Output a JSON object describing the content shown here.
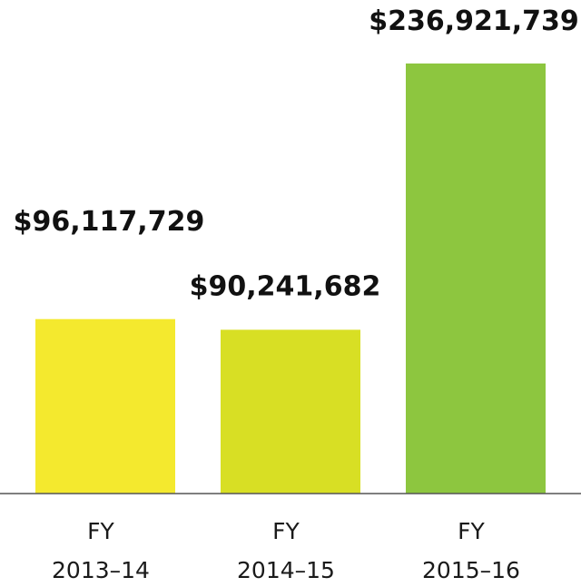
{
  "chart_data": {
    "type": "bar",
    "title": "",
    "xlabel": "",
    "ylabel": "",
    "categories": [
      {
        "line1": "FY",
        "line2": "2013–14"
      },
      {
        "line1": "FY",
        "line2": "2014–15"
      },
      {
        "line1": "FY",
        "line2": "2015–16"
      }
    ],
    "values": [
      96117729,
      90241682,
      236921739
    ],
    "value_labels": [
      "$96,117,729",
      "$90,241,682",
      "$236,921,739"
    ],
    "bar_colors": [
      "#f4e92e",
      "#d8df24",
      "#8dc63f"
    ],
    "ylim": [
      0,
      236921739
    ],
    "grid": false,
    "legend": "none"
  }
}
